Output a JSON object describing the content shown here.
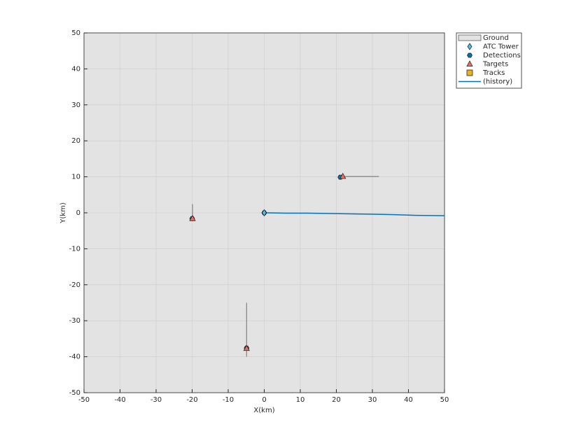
{
  "chart_data": {
    "type": "scatter",
    "xlabel": "X(km)",
    "ylabel": "Y(km)",
    "xlim": [
      -50,
      50
    ],
    "ylim": [
      -50,
      50
    ],
    "xticks": [
      -50,
      -40,
      -30,
      -20,
      -10,
      0,
      10,
      20,
      30,
      40,
      50
    ],
    "yticks": [
      -50,
      -40,
      -30,
      -20,
      -10,
      0,
      10,
      20,
      30,
      40,
      50
    ],
    "grid": true,
    "legend": "outside-top-right",
    "ground": {
      "name": "Ground",
      "color": "#e3e3e3"
    },
    "series": [
      {
        "name": "ATC Tower",
        "marker": "diamond",
        "color": "#4dbeee",
        "x": [
          0
        ],
        "values": [
          0
        ]
      },
      {
        "name": "Detections",
        "marker": "hexagon",
        "color": "#0072bd",
        "x": [
          0,
          21.1,
          -20,
          -4.9
        ],
        "values": [
          0,
          9.9,
          -1.6,
          -37.6
        ]
      },
      {
        "name": "Targets",
        "marker": "triangle",
        "color": "#e8705a",
        "x": [
          21.8,
          -19.9,
          -4.9
        ],
        "values": [
          10.1,
          -1.6,
          -37.7
        ]
      },
      {
        "name": "Tracks",
        "marker": "square",
        "color": "#edb120",
        "x": [],
        "values": []
      },
      {
        "name": "(history)",
        "marker": "line",
        "color": "#0072bd",
        "x": [
          0,
          6,
          12,
          18,
          24,
          30,
          36,
          42,
          50
        ],
        "values": [
          0,
          -0.1,
          -0.1,
          -0.2,
          -0.3,
          -0.4,
          -0.5,
          -0.7,
          -0.8
        ]
      }
    ],
    "segments": [
      [
        21.8,
        10.1,
        31.8,
        10.1
      ],
      [
        -19.9,
        -1.6,
        -19.9,
        2.4
      ],
      [
        -4.9,
        -40,
        -4.9,
        -25
      ]
    ]
  }
}
